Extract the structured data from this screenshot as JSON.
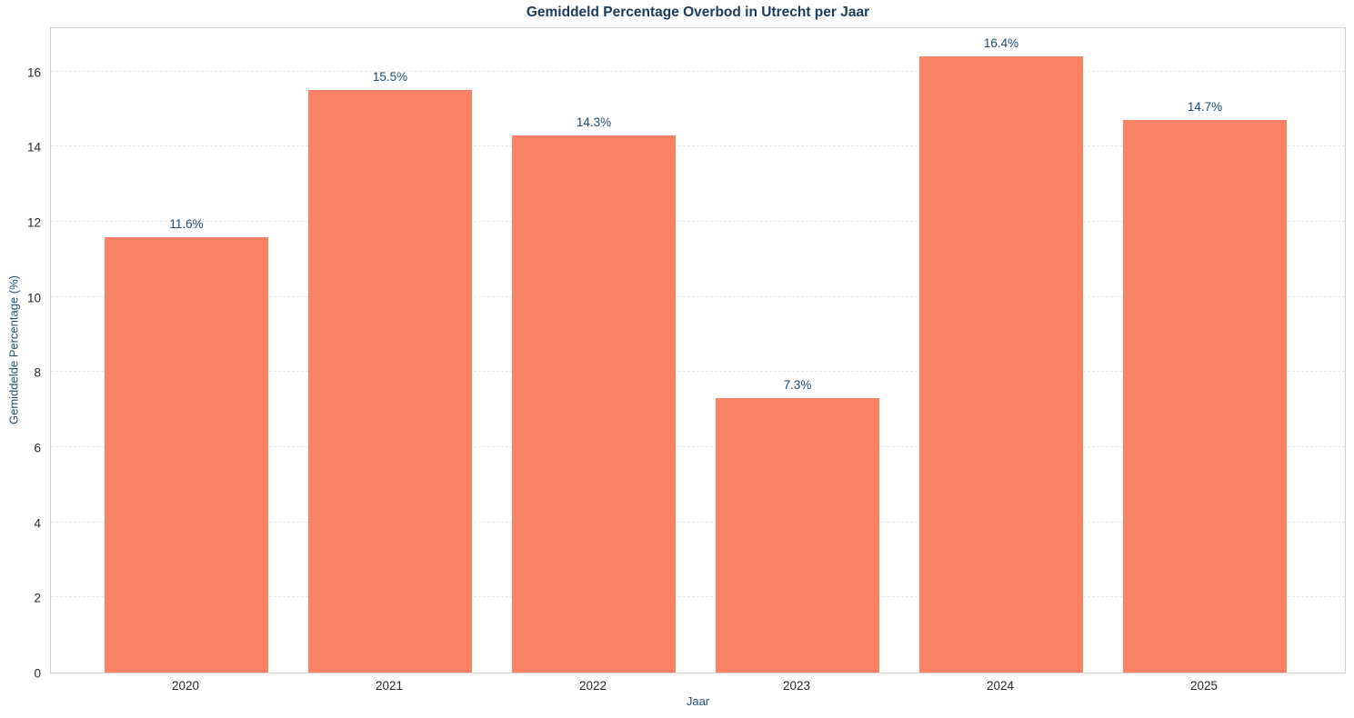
{
  "chart_data": {
    "type": "bar",
    "title": "Gemiddeld Percentage Overbod in Utrecht per Jaar",
    "xlabel": "Jaar",
    "ylabel": "Gemiddelde Percentage (%)",
    "categories": [
      "2020",
      "2021",
      "2022",
      "2023",
      "2024",
      "2025"
    ],
    "values": [
      11.6,
      15.5,
      14.3,
      7.3,
      16.4,
      14.7
    ],
    "bar_labels": [
      "11.6%",
      "15.5%",
      "14.3%",
      "7.3%",
      "16.4%",
      "14.7%"
    ],
    "yticks": [
      0,
      2,
      4,
      6,
      8,
      10,
      12,
      14,
      16
    ],
    "ylim": [
      0,
      17.2
    ],
    "grid": "horizontal-dashed",
    "legend": "none",
    "colors": {
      "bar": "#FC8165",
      "title": "#1B3B5A",
      "axis_label": "#20517A",
      "value_label": "#1C4A6D",
      "tick_label": "#262626",
      "grid": "#E8E8E8",
      "spine": "#CFCFCF",
      "background": "#FFFFFF"
    }
  }
}
